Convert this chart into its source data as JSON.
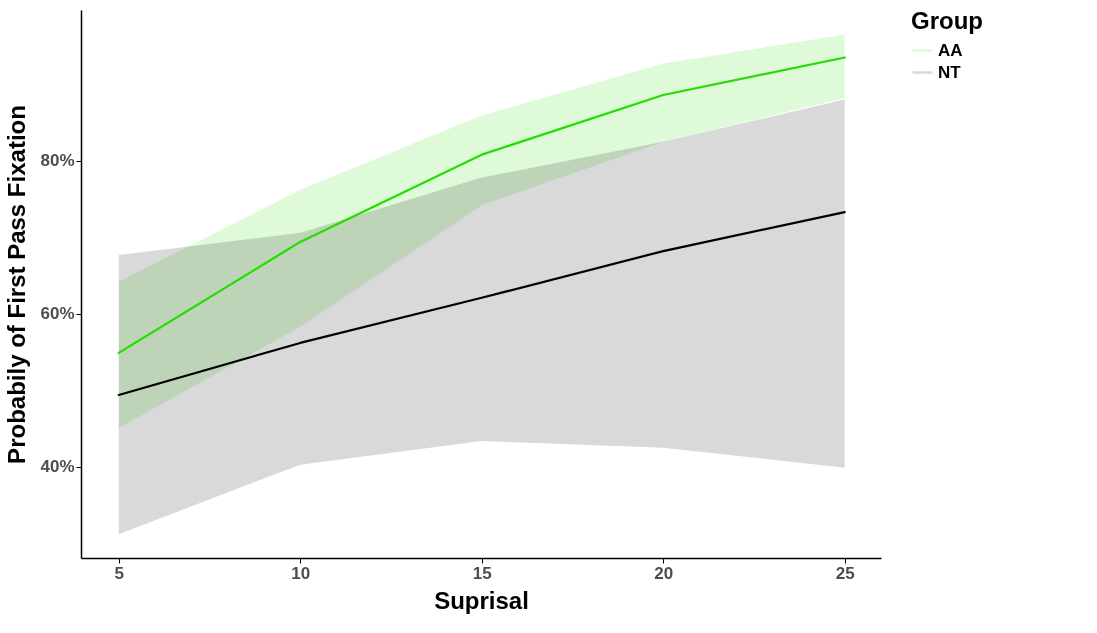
{
  "chart_data": {
    "type": "line",
    "xlabel": "Suprisal",
    "ylabel": "Probabily of First Pass Fixation",
    "legend_title": "Group",
    "legend": "right",
    "grid": false,
    "x": [
      5,
      10,
      15,
      20,
      25
    ],
    "xlim": [
      3.96,
      26
    ],
    "xticks": [
      5,
      10,
      15,
      20,
      25
    ],
    "ylim": [
      28.1,
      99.7
    ],
    "yticks": [
      {
        "value": 40,
        "label": "40%"
      },
      {
        "value": 60,
        "label": "60%"
      },
      {
        "value": 80,
        "label": "80%"
      }
    ],
    "series": [
      {
        "name": "AA",
        "color": "#22dd00",
        "values": [
          54.9,
          69.4,
          80.8,
          88.6,
          93.5
        ],
        "lower": [
          45.1,
          58.3,
          74.2,
          82.5,
          88.2
        ],
        "upper": [
          64.2,
          76.2,
          85.9,
          92.7,
          96.5
        ]
      },
      {
        "name": "NT",
        "color": "#000000",
        "values": [
          49.4,
          56.2,
          62.1,
          68.2,
          73.3
        ],
        "lower": [
          31.2,
          40.3,
          43.4,
          42.5,
          39.9
        ],
        "upper": [
          67.7,
          70.6,
          77.8,
          82.5,
          88.0
        ]
      }
    ]
  }
}
